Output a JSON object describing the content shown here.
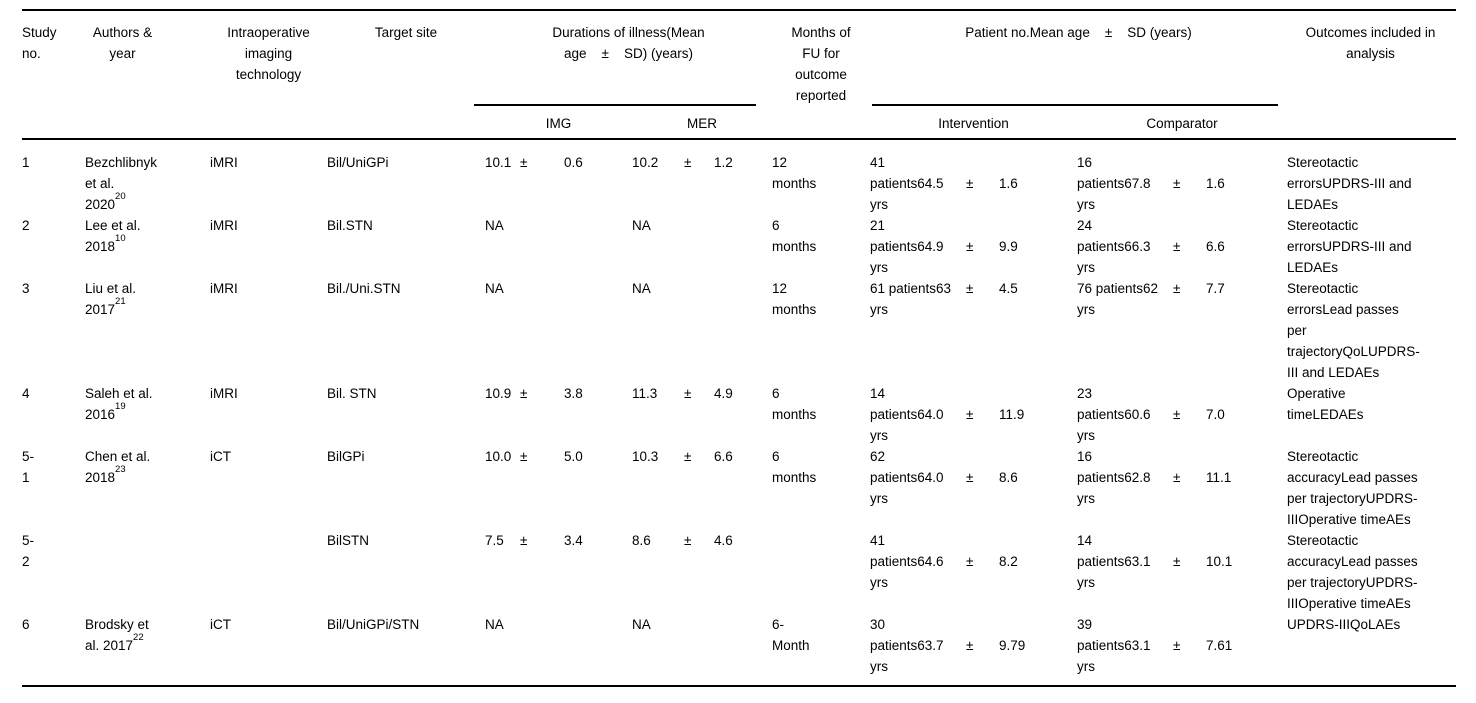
{
  "table": {
    "header": {
      "study_no": "Study\nno.",
      "authors": "Authors &\nyear",
      "imaging": "Intraoperative\nimaging\ntechnology",
      "target": "Target site",
      "durations_group": "Durations of illness(Mean\nage    ±    SD) (years)",
      "img": "IMG",
      "mer": "MER",
      "months": "Months of\nFU for\noutcome\nreported",
      "patients_group": "Patient no.Mean age    ±    SD (years)",
      "intervention": "Intervention",
      "comparator": "Comparator",
      "outcomes": "Outcomes included in\nanalysis"
    },
    "rows": [
      {
        "study_no": "1",
        "authors": "Bezchlibnyk\net al.\n2020",
        "authors_sup": "20",
        "imaging": "iMRI",
        "target": "Bil/UniGPi",
        "img": {
          "value": "10.1",
          "pm": "±",
          "sd": "0.6"
        },
        "mer": {
          "value": "10.2",
          "pm": "±",
          "sd": "1.2"
        },
        "months": "12\nmonths",
        "intervention": {
          "main": "41\npatients64.5",
          "pm": "±",
          "sd": "1.6",
          "unit": "yrs"
        },
        "comparator": {
          "main": "16\npatients67.8",
          "pm": "±",
          "sd": "1.6",
          "unit": "yrs"
        },
        "outcomes": "Stereotactic\nerrorsUPDRS-III and\nLEDAEs"
      },
      {
        "study_no": "2",
        "authors": "Lee et al.\n2018",
        "authors_sup": "10",
        "imaging": "iMRI",
        "target": "Bil.STN",
        "img": "NA",
        "mer": "NA",
        "months": "6\nmonths",
        "intervention": {
          "main": "21\npatients64.9",
          "pm": "±",
          "sd": "9.9",
          "unit": "yrs"
        },
        "comparator": {
          "main": "24\npatients66.3",
          "pm": "±",
          "sd": "6.6",
          "unit": "yrs"
        },
        "outcomes": "Stereotactic\nerrorsUPDRS-III and\nLEDAEs"
      },
      {
        "study_no": "3",
        "authors": "Liu et al.\n2017",
        "authors_sup": "21",
        "imaging": "iMRI",
        "target": "Bil./Uni.STN",
        "img": "NA",
        "mer": "NA",
        "months": "12\nmonths",
        "intervention": {
          "main": "61 patients63",
          "pm": "±",
          "sd": "4.5",
          "unit": "yrs"
        },
        "comparator": {
          "main": "76 patients62",
          "pm": "±",
          "sd": "7.7",
          "unit": "yrs"
        },
        "outcomes": "Stereotactic\nerrorsLead passes\nper\ntrajectoryQoLUPDRS-\nIII and LEDAEs"
      },
      {
        "study_no": "4",
        "authors": "Saleh et al.\n2016",
        "authors_sup": "19",
        "imaging": "iMRI",
        "target": "Bil. STN",
        "img": {
          "value": "10.9",
          "pm": "±",
          "sd": "3.8"
        },
        "mer": {
          "value": "11.3",
          "pm": "±",
          "sd": "4.9"
        },
        "months": "6\nmonths",
        "intervention": {
          "main": "14\npatients64.0",
          "pm": "±",
          "sd": "11.9",
          "unit": "yrs"
        },
        "comparator": {
          "main": "23\npatients60.6",
          "pm": "±",
          "sd": "7.0",
          "unit": "yrs"
        },
        "outcomes": "Operative\ntimeLEDAEs"
      },
      {
        "study_no": "5-\n1",
        "authors": "Chen et al.\n2018",
        "authors_sup": "23",
        "imaging": "iCT",
        "target": "BilGPi",
        "img": {
          "value": "10.0",
          "pm": "±",
          "sd": "5.0"
        },
        "mer": {
          "value": "10.3",
          "pm": "±",
          "sd": "6.6"
        },
        "months": "6\nmonths",
        "intervention": {
          "main": "62\npatients64.0",
          "pm": "±",
          "sd": "8.6",
          "unit": "yrs"
        },
        "comparator": {
          "main": "16\npatients62.8",
          "pm": "±",
          "sd": "11.1",
          "unit": "yrs"
        },
        "outcomes": "Stereotactic\naccuracyLead passes\nper trajectoryUPDRS-\nIIIOperative timeAEs"
      },
      {
        "study_no": "5-\n2",
        "authors": "",
        "authors_sup": null,
        "imaging": "",
        "target": "BilSTN",
        "img": {
          "value": "7.5",
          "pm": "±",
          "sd": "3.4"
        },
        "mer": {
          "value": "8.6",
          "pm": "±",
          "sd": "4.6"
        },
        "months": "",
        "intervention": {
          "main": "41\npatients64.6",
          "pm": "±",
          "sd": "8.2",
          "unit": "yrs"
        },
        "comparator": {
          "main": "14\npatients63.1",
          "pm": "±",
          "sd": "10.1",
          "unit": "yrs"
        },
        "outcomes": "Stereotactic\naccuracyLead passes\nper trajectoryUPDRS-\nIIIOperative timeAEs"
      },
      {
        "study_no": "6",
        "authors": "Brodsky et\nal. 2017",
        "authors_sup": "22",
        "imaging": "iCT",
        "target": "Bil/UniGPi/STN",
        "img": "NA",
        "mer": "NA",
        "months": "6-\nMonth",
        "intervention": {
          "main": "30\npatients63.7",
          "pm": "±",
          "sd": "9.79",
          "unit": "yrs"
        },
        "comparator": {
          "main": "39\npatients63.1",
          "pm": "±",
          "sd": "7.61",
          "unit": "yrs"
        },
        "outcomes": "UPDRS-IIIQoLAEs"
      }
    ]
  }
}
